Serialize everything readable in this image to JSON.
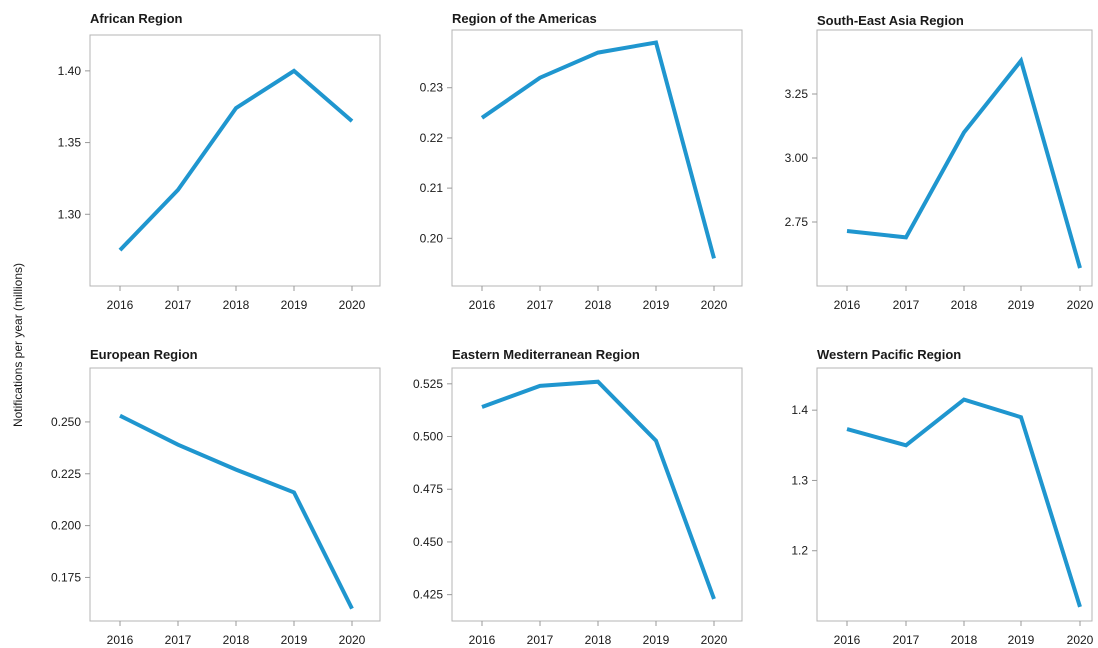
{
  "figure": {
    "ylabel": "Notifications per year (millions)",
    "line_color": "#1f96cf"
  },
  "chart_data": [
    {
      "type": "line",
      "title": "African Region",
      "x": [
        "2016",
        "2017",
        "2018",
        "2019",
        "2020"
      ],
      "values": [
        1.275,
        1.317,
        1.374,
        1.4,
        1.365
      ],
      "ylim": [
        1.25,
        1.425
      ],
      "yticks": [
        1.3,
        1.35,
        1.4
      ],
      "ytick_labels": [
        "1.30",
        "1.35",
        "1.40"
      ],
      "grid": false
    },
    {
      "type": "line",
      "title": "Region of the Americas",
      "x": [
        "2016",
        "2017",
        "2018",
        "2019",
        "2020"
      ],
      "values": [
        0.224,
        0.232,
        0.237,
        0.239,
        0.196
      ],
      "ylim": [
        0.1905,
        0.2415
      ],
      "yticks": [
        0.2,
        0.21,
        0.22,
        0.23
      ],
      "ytick_labels": [
        "0.20",
        "0.21",
        "0.22",
        "0.23"
      ],
      "grid": false
    },
    {
      "type": "line",
      "title": "South-East Asia Region",
      "x": [
        "2016",
        "2017",
        "2018",
        "2019",
        "2020"
      ],
      "values": [
        2.715,
        2.69,
        3.1,
        3.38,
        2.57
      ],
      "ylim": [
        2.5,
        3.5
      ],
      "yticks": [
        2.75,
        3.0,
        3.25
      ],
      "ytick_labels": [
        "2.75",
        "3.00",
        "3.25"
      ],
      "grid": false
    },
    {
      "type": "line",
      "title": "European Region",
      "x": [
        "2016",
        "2017",
        "2018",
        "2019",
        "2020"
      ],
      "values": [
        0.253,
        0.239,
        0.227,
        0.216,
        0.16
      ],
      "ylim": [
        0.154,
        0.276
      ],
      "yticks": [
        0.175,
        0.2,
        0.225,
        0.25
      ],
      "ytick_labels": [
        "0.175",
        "0.200",
        "0.225",
        "0.250"
      ],
      "grid": false
    },
    {
      "type": "line",
      "title": "Eastern Mediterranean Region",
      "x": [
        "2016",
        "2017",
        "2018",
        "2019",
        "2020"
      ],
      "values": [
        0.514,
        0.524,
        0.526,
        0.498,
        0.423
      ],
      "ylim": [
        0.4125,
        0.5325
      ],
      "yticks": [
        0.425,
        0.45,
        0.475,
        0.5,
        0.525
      ],
      "ytick_labels": [
        "0.425",
        "0.450",
        "0.475",
        "0.500",
        "0.525"
      ],
      "grid": false
    },
    {
      "type": "line",
      "title": "Western Pacific Region",
      "x": [
        "2016",
        "2017",
        "2018",
        "2019",
        "2020"
      ],
      "values": [
        1.373,
        1.35,
        1.415,
        1.39,
        1.12
      ],
      "ylim": [
        1.1,
        1.46
      ],
      "yticks": [
        1.2,
        1.3,
        1.4
      ],
      "ytick_labels": [
        "1.2",
        "1.3",
        "1.4"
      ],
      "grid": false
    }
  ]
}
